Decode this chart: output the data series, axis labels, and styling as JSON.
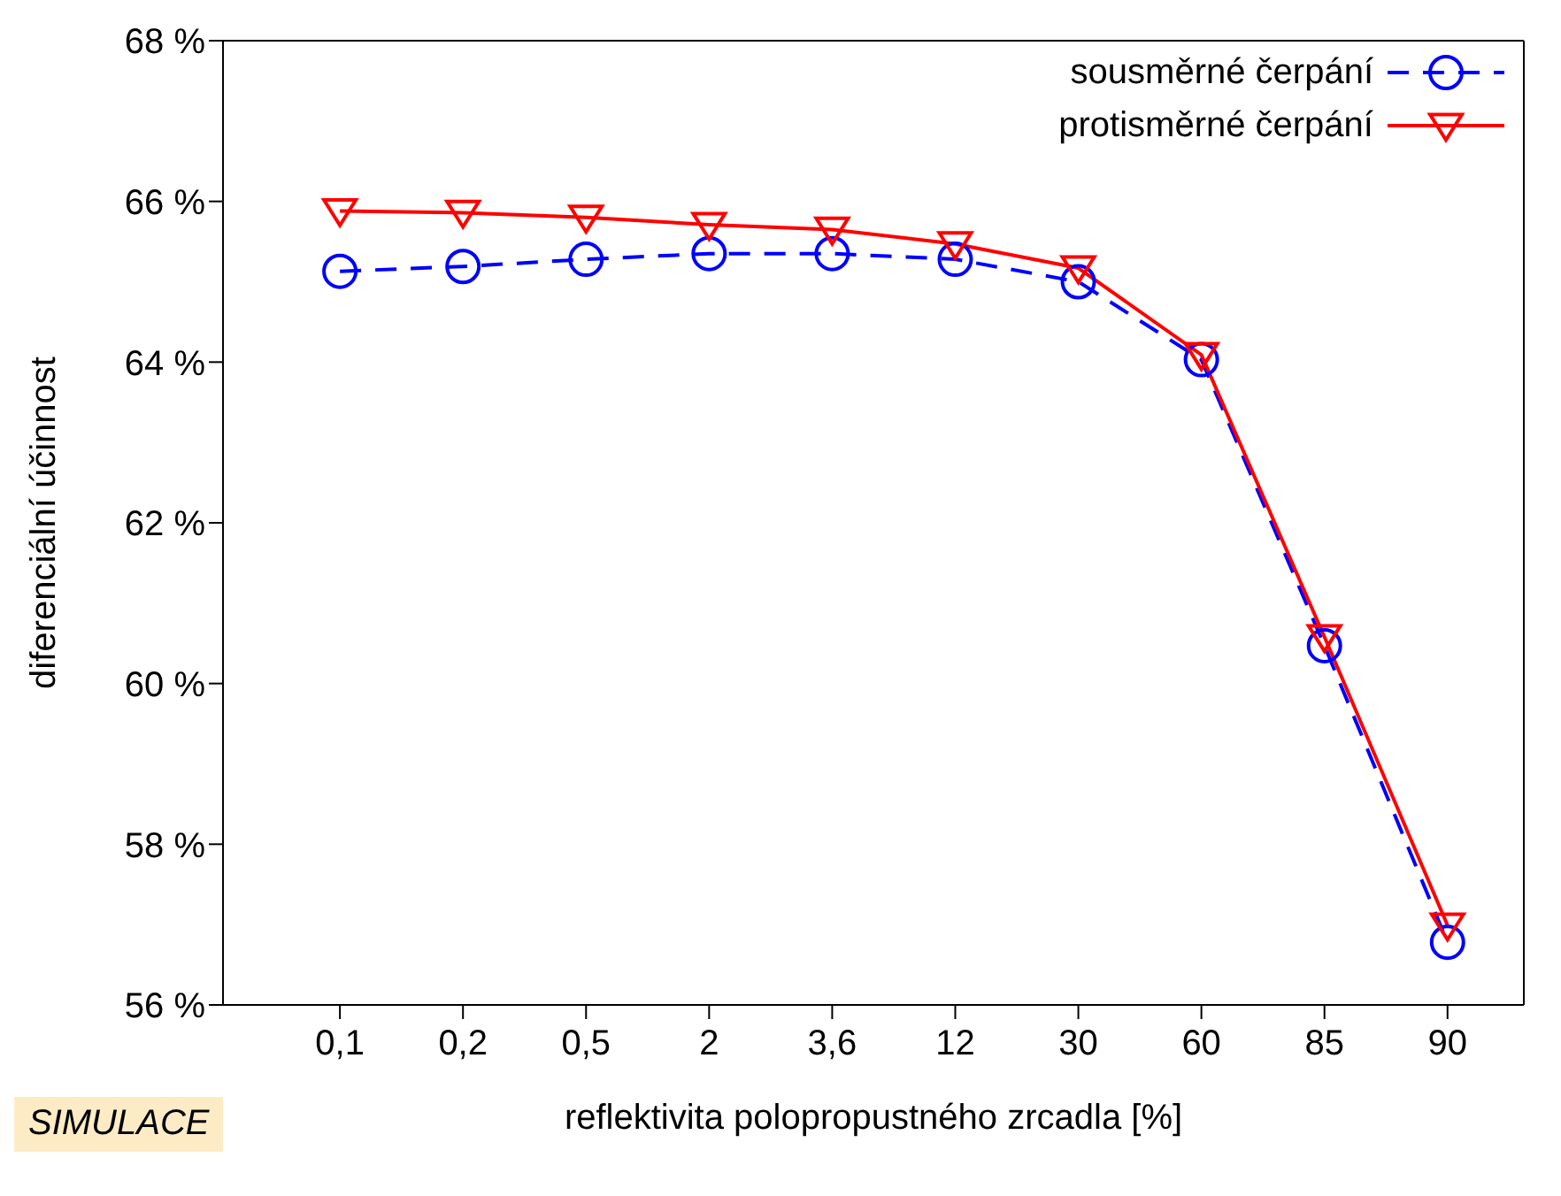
{
  "chart_data": {
    "type": "line",
    "xlabel": "reflektivita polopropustného zrcadla [%]",
    "ylabel": "diferenciální účinnost",
    "categories": [
      "0,1",
      "0,2",
      "0,5",
      "2",
      "3,6",
      "12",
      "30",
      "60",
      "85",
      "90"
    ],
    "series": [
      {
        "name": "sousměrné čerpání",
        "color": "#0000ff",
        "marker": "circle",
        "line_style": "dashed",
        "values": [
          65.13,
          65.19,
          65.28,
          65.35,
          65.35,
          65.28,
          65.0,
          64.03,
          60.47,
          56.78
        ]
      },
      {
        "name": "protisměrné čerpání",
        "color": "#ff0000",
        "marker": "triangle",
        "line_style": "solid",
        "values": [
          65.88,
          65.86,
          65.8,
          65.71,
          65.65,
          65.47,
          65.17,
          64.09,
          60.58,
          56.99
        ]
      }
    ],
    "ylim": [
      56,
      68
    ],
    "yticks": [
      {
        "value": 56,
        "label": "56 %"
      },
      {
        "value": 58,
        "label": "58 %"
      },
      {
        "value": 60,
        "label": "60 %"
      },
      {
        "value": 62,
        "label": "62 %"
      },
      {
        "value": 64,
        "label": "64 %"
      },
      {
        "value": 66,
        "label": "66 %"
      },
      {
        "value": 68,
        "label": "68 %"
      }
    ],
    "grid": false,
    "legend": "top right",
    "annotations": [
      "SIMULACE"
    ]
  }
}
